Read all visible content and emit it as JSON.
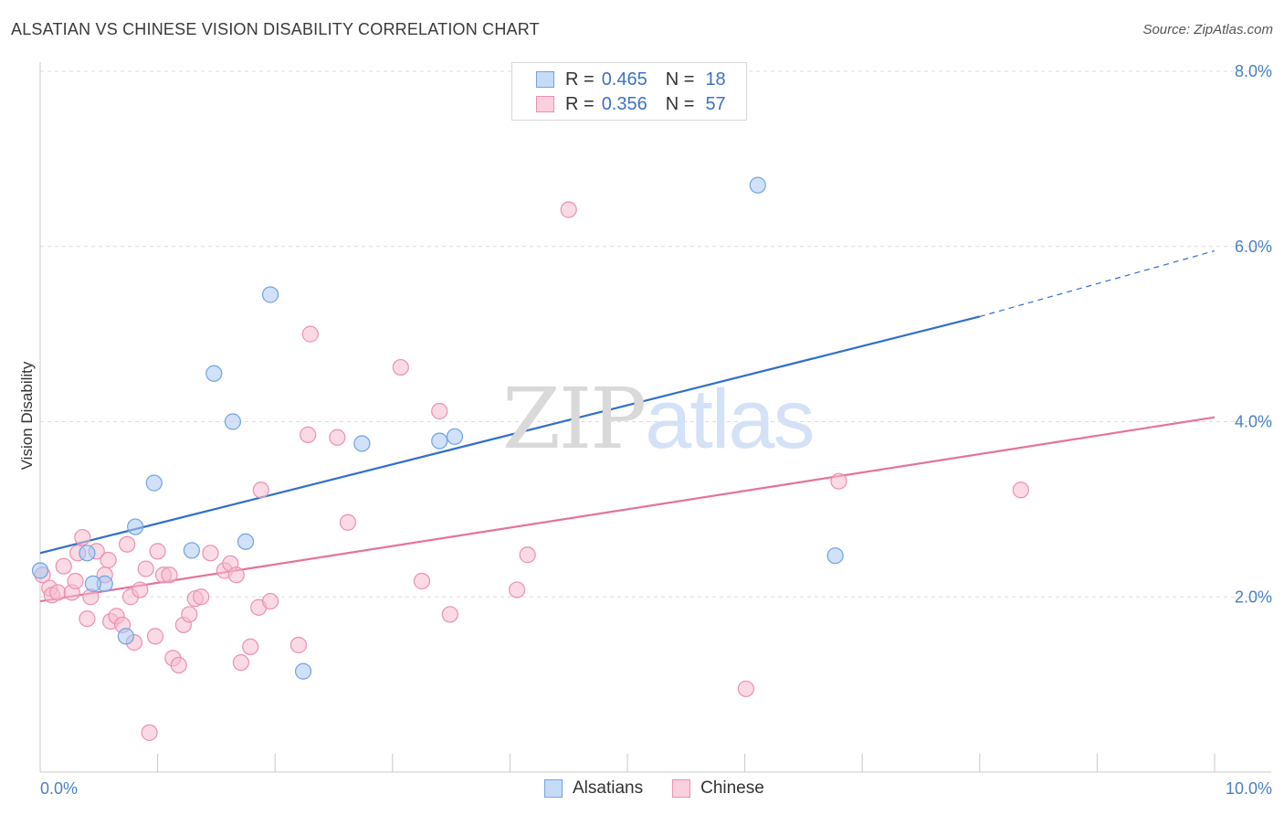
{
  "title": "ALSATIAN VS CHINESE VISION DISABILITY CORRELATION CHART",
  "source": "Source: ZipAtlas.com",
  "watermark": {
    "zip": "ZIP",
    "atlas": "atlas"
  },
  "legend": {
    "rows": [
      {
        "r_label": "R =",
        "r_value": "0.465",
        "n_label": "N =",
        "n_value": "18",
        "color": "#aac9f2"
      },
      {
        "r_label": "R =",
        "r_value": "0.356",
        "n_label": "N =",
        "n_value": "57",
        "color": "#f6bccd"
      }
    ]
  },
  "bottom_legend": [
    {
      "label": "Alsatians",
      "color": "#aac9f2"
    },
    {
      "label": "Chinese",
      "color": "#f6bccd"
    }
  ],
  "chart_data": {
    "type": "scatter",
    "title": "ALSATIAN VS CHINESE VISION DISABILITY CORRELATION CHART",
    "xlabel": "",
    "ylabel": "Vision Disability",
    "xlim": [
      0,
      10
    ],
    "ylim": [
      0,
      8
    ],
    "x_tick_labels": [
      "0.0%",
      "10.0%"
    ],
    "y_tick_labels": [
      "2.0%",
      "4.0%",
      "6.0%",
      "8.0%"
    ],
    "y_ticks": [
      2,
      4,
      6,
      8
    ],
    "grid": true,
    "series": [
      {
        "name": "Alsatians",
        "color": "#6fa3e6",
        "fill": "#aac9f2",
        "line_color": "#2f6fcb",
        "trend": {
          "x0": 0,
          "y0": 2.5,
          "x1": 8.0,
          "y1": 5.2,
          "dash_to_x": 10.0,
          "dash_to_y": 5.95
        },
        "points": [
          [
            0.0,
            2.3
          ],
          [
            0.4,
            2.5
          ],
          [
            0.55,
            2.15
          ],
          [
            0.73,
            1.55
          ],
          [
            0.81,
            2.8
          ],
          [
            0.97,
            3.3
          ],
          [
            1.29,
            2.53
          ],
          [
            1.48,
            4.55
          ],
          [
            1.64,
            4.0
          ],
          [
            1.75,
            2.63
          ],
          [
            1.96,
            5.45
          ],
          [
            2.24,
            1.15
          ],
          [
            2.74,
            3.75
          ],
          [
            3.4,
            3.78
          ],
          [
            3.53,
            3.83
          ],
          [
            6.11,
            6.7
          ],
          [
            6.77,
            2.47
          ],
          [
            0.45,
            2.15
          ]
        ]
      },
      {
        "name": "Chinese",
        "color": "#ee8fae",
        "fill": "#f6bccd",
        "line_color": "#e4739a",
        "trend": {
          "x0": 0,
          "y0": 1.95,
          "x1": 10.0,
          "y1": 4.05
        },
        "points": [
          [
            0.02,
            2.25
          ],
          [
            0.08,
            2.1
          ],
          [
            0.1,
            2.02
          ],
          [
            0.15,
            2.05
          ],
          [
            0.2,
            2.35
          ],
          [
            0.27,
            2.05
          ],
          [
            0.3,
            2.18
          ],
          [
            0.32,
            2.5
          ],
          [
            0.36,
            2.68
          ],
          [
            0.4,
            1.75
          ],
          [
            0.43,
            2.0
          ],
          [
            0.48,
            2.52
          ],
          [
            0.55,
            2.25
          ],
          [
            0.58,
            2.42
          ],
          [
            0.6,
            1.72
          ],
          [
            0.65,
            1.78
          ],
          [
            0.7,
            1.68
          ],
          [
            0.74,
            2.6
          ],
          [
            0.77,
            2.0
          ],
          [
            0.8,
            1.48
          ],
          [
            0.85,
            2.08
          ],
          [
            0.9,
            2.32
          ],
          [
            0.93,
            0.45
          ],
          [
            0.98,
            1.55
          ],
          [
            1.0,
            2.52
          ],
          [
            1.05,
            2.25
          ],
          [
            1.1,
            2.25
          ],
          [
            1.13,
            1.3
          ],
          [
            1.18,
            1.22
          ],
          [
            1.22,
            1.68
          ],
          [
            1.27,
            1.8
          ],
          [
            1.32,
            1.98
          ],
          [
            1.37,
            2.0
          ],
          [
            1.45,
            2.5
          ],
          [
            1.57,
            2.3
          ],
          [
            1.62,
            2.38
          ],
          [
            1.67,
            2.25
          ],
          [
            1.71,
            1.25
          ],
          [
            1.79,
            1.43
          ],
          [
            1.86,
            1.88
          ],
          [
            1.88,
            3.22
          ],
          [
            1.96,
            1.95
          ],
          [
            2.2,
            1.45
          ],
          [
            2.28,
            3.85
          ],
          [
            2.3,
            5.0
          ],
          [
            2.53,
            3.82
          ],
          [
            2.62,
            2.85
          ],
          [
            3.07,
            4.62
          ],
          [
            3.25,
            2.18
          ],
          [
            3.4,
            4.12
          ],
          [
            3.49,
            1.8
          ],
          [
            4.06,
            2.08
          ],
          [
            4.15,
            2.48
          ],
          [
            4.5,
            6.42
          ],
          [
            6.01,
            0.95
          ],
          [
            6.8,
            3.32
          ],
          [
            8.35,
            3.22
          ]
        ]
      }
    ]
  }
}
